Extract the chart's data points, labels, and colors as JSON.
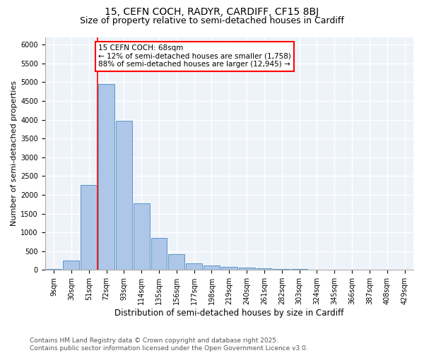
{
  "title1": "15, CEFN COCH, RADYR, CARDIFF, CF15 8BJ",
  "title2": "Size of property relative to semi-detached houses in Cardiff",
  "xlabel": "Distribution of semi-detached houses by size in Cardiff",
  "ylabel": "Number of semi-detached properties",
  "categories": [
    "9sqm",
    "30sqm",
    "51sqm",
    "72sqm",
    "93sqm",
    "114sqm",
    "135sqm",
    "156sqm",
    "177sqm",
    "198sqm",
    "219sqm",
    "240sqm",
    "261sqm",
    "282sqm",
    "303sqm",
    "324sqm",
    "345sqm",
    "366sqm",
    "387sqm",
    "408sqm",
    "429sqm"
  ],
  "values": [
    30,
    250,
    2270,
    4950,
    3980,
    1780,
    850,
    420,
    170,
    115,
    80,
    60,
    40,
    30,
    20,
    15,
    10,
    8,
    5,
    3,
    2
  ],
  "bar_color": "#aec6e8",
  "bar_edge_color": "#5a96c8",
  "vline_color": "red",
  "vline_bar_index": 3,
  "annotation_text": "15 CEFN COCH: 68sqm\n← 12% of semi-detached houses are smaller (1,758)\n88% of semi-detached houses are larger (12,945) →",
  "annotation_box_color": "red",
  "ylim": [
    0,
    6200
  ],
  "yticks": [
    0,
    500,
    1000,
    1500,
    2000,
    2500,
    3000,
    3500,
    4000,
    4500,
    5000,
    5500,
    6000
  ],
  "bg_color": "#eef3fa",
  "grid_color": "#ffffff",
  "footer": "Contains HM Land Registry data © Crown copyright and database right 2025.\nContains public sector information licensed under the Open Government Licence v3.0.",
  "title1_fontsize": 10,
  "title2_fontsize": 9,
  "xlabel_fontsize": 8.5,
  "ylabel_fontsize": 8,
  "tick_fontsize": 7,
  "annotation_fontsize": 7.5,
  "footer_fontsize": 6.5
}
